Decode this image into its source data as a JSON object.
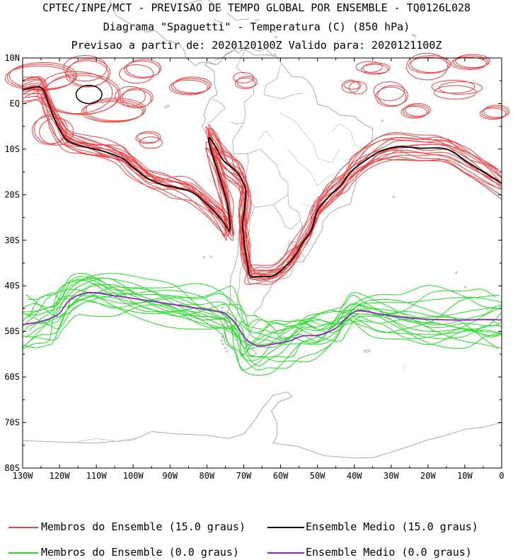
{
  "header": {
    "line1": "CPTEC/INPE/MCT - PREVISAO DE TEMPO GLOBAL POR ENSEMBLE - TQ0126L028",
    "line2": "Diagrama \"Spaguetti\" - Temperatura (C) (850 hPa)",
    "line3": "Previsao a partir de: 2020120100Z  Valido para: 2020121100Z"
  },
  "axes": {
    "lat_labels": [
      "10N",
      "EQ",
      "10S",
      "20S",
      "30S",
      "40S",
      "50S",
      "60S",
      "70S",
      "80S"
    ],
    "lon_labels": [
      "130W",
      "120W",
      "110W",
      "100W",
      "90W",
      "80W",
      "70W",
      "60W",
      "50W",
      "40W",
      "30W",
      "20W",
      "10W",
      "0"
    ],
    "lat_range": [
      -80,
      10
    ],
    "lon_range": [
      -130,
      0
    ]
  },
  "legend": [
    {
      "label": "Membros do Ensemble (15.0 graus)",
      "color": "#f04040"
    },
    {
      "label": "Ensemble Medio (15.0 graus)",
      "color": "#000000"
    },
    {
      "label": "Membros do Ensemble (0.0 graus)",
      "color": "#22dd22"
    },
    {
      "label": "Ensemble Medio (0.0 graus)",
      "color": "#9922cc"
    }
  ],
  "colors": {
    "coast": "#aaaaaa",
    "member15": "#f04040",
    "mean15": "#000000",
    "member0": "#22dd22",
    "mean0": "#9922cc"
  }
}
